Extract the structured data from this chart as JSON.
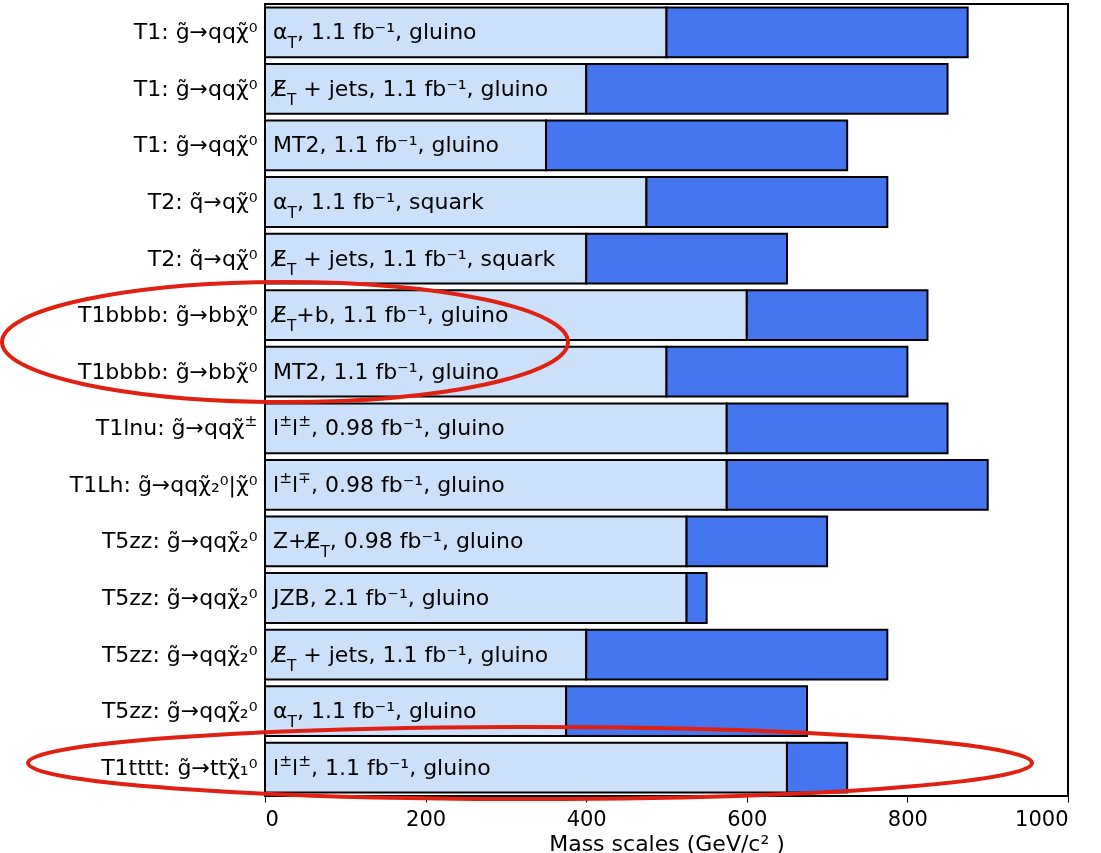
{
  "chart_data": {
    "type": "bar",
    "orientation": "horizontal",
    "stacked": true,
    "xlabel": "Mass scales (GeV/c² )",
    "categories": [
      "T1: g̃→qqχ̃⁰",
      "T1: g̃→qqχ̃⁰",
      "T1: g̃→qqχ̃⁰",
      "T2: q̃→qχ̃⁰",
      "T2: q̃→qχ̃⁰",
      "T1bbbb: g̃→bbχ̃⁰",
      "T1bbbb: g̃→bbχ̃⁰",
      "T1lnu: g̃→qqχ̃$^{±}$",
      "T1Lh: g̃→qqχ̃₂⁰|χ̃⁰",
      "T5zz: g̃→qqχ̃₂⁰",
      "T5zz: g̃→qqχ̃₂⁰",
      "T5zz: g̃→qqχ̃₂⁰",
      "T5zz: g̃→qqχ̃₂⁰",
      "T1tttt: g̃→ttχ̃₁⁰"
    ],
    "series": [
      {
        "color": "#cce0fa",
        "values": [
          500,
          400,
          350,
          475,
          400,
          600,
          500,
          575,
          575,
          525,
          525,
          400,
          375,
          650
        ]
      },
      {
        "color": "#4576f0",
        "values": [
          375,
          450,
          375,
          300,
          250,
          225,
          300,
          275,
          325,
          175,
          25,
          375,
          300,
          75
        ]
      }
    ],
    "annotations": [
      "α$_{T}$, 1.1 fb⁻¹, gluino",
      "E̸$_{T}$ + jets, 1.1 fb⁻¹, gluino",
      "MT2, 1.1 fb⁻¹, gluino",
      "α$_{T}$, 1.1 fb⁻¹, squark",
      "E̸$_{T}$ + jets, 1.1 fb⁻¹, squark",
      "E̸$_{T}$+b, 1.1 fb⁻¹, gluino",
      "MT2, 1.1 fb⁻¹, gluino",
      "l$^{±}$l$^{±}$, 0.98 fb⁻¹, gluino",
      "l$^{±}$l$^{∓}$, 0.98 fb⁻¹, gluino",
      "Z+E̸$_{T}$, 0.98 fb⁻¹, gluino",
      "JZB, 2.1 fb⁻¹, gluino",
      "E̸$_{T}$ + jets, 1.1 fb⁻¹, gluino",
      "α$_{T}$, 1.1 fb⁻¹, gluino",
      "l$^{±}$l$^{±}$, 1.1 fb⁻¹, gluino"
    ],
    "xlim": [
      0,
      1000
    ],
    "xticks": [
      0,
      200,
      400,
      600,
      800,
      {
        "value": 1000,
        "label": "1000"
      }
    ]
  }
}
